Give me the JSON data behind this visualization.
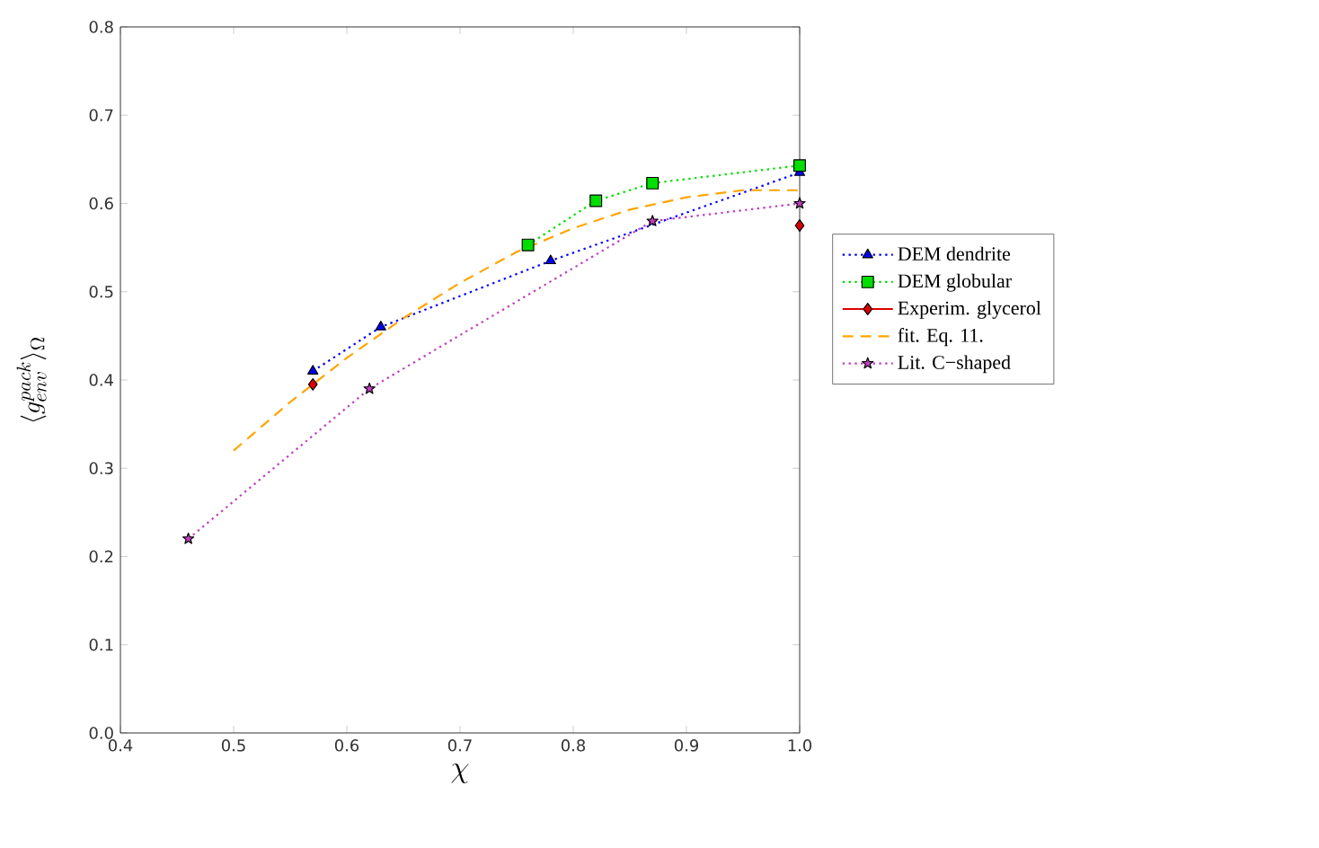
{
  "chart_data": {
    "type": "line",
    "xlabel": "\\chi",
    "ylabel": "\\langle g_{env}^{pack} \\rangle_{\\Omega}",
    "xlim": [
      0.4,
      1.0
    ],
    "ylim": [
      0.0,
      0.8
    ],
    "xticks": [
      0.4,
      0.5,
      0.6,
      0.7,
      0.8,
      0.9,
      {
        "value": 1.0,
        "label": "1.0"
      }
    ],
    "yticks": [
      {
        "value": 0.0,
        "label": "0.0"
      },
      0.1,
      0.2,
      0.3,
      0.4,
      0.5,
      0.6,
      0.7,
      0.8
    ],
    "legend": "right",
    "grid": false,
    "series": [
      {
        "name": "DEM dendrite",
        "color": "#0000ff",
        "marker": "triangle",
        "line_style": "dotted",
        "x": [
          0.57,
          0.63,
          0.78,
          1.0
        ],
        "values": [
          0.41,
          0.46,
          0.535,
          0.635
        ]
      },
      {
        "name": "DEM globular",
        "color": "#00dd00",
        "marker": "square",
        "line_style": "dotted",
        "x": [
          0.76,
          0.82,
          0.87,
          1.0
        ],
        "values": [
          0.553,
          0.603,
          0.623,
          0.643
        ]
      },
      {
        "name": "Experim. glycerol",
        "type": "scatter",
        "color": "#dd0000",
        "marker": "diamond",
        "x": [
          0.57,
          1.0
        ],
        "values": [
          0.395,
          0.575
        ]
      },
      {
        "name": "fit. Eq. 11.",
        "color": "#ffa500",
        "marker": "none",
        "line_style": "dashed",
        "x": [
          0.5,
          0.55,
          0.6,
          0.65,
          0.7,
          0.75,
          0.8,
          0.85,
          0.9,
          0.95,
          1.0
        ],
        "values": [
          0.32,
          0.375,
          0.425,
          0.47,
          0.51,
          0.545,
          0.572,
          0.593,
          0.607,
          0.615,
          0.615
        ]
      },
      {
        "name": "Lit. C−shaped",
        "color": "#bf40bf",
        "marker": "star",
        "line_style": "dotted",
        "x": [
          0.46,
          0.62,
          0.87,
          1.0
        ],
        "values": [
          0.22,
          0.39,
          0.58,
          0.6
        ]
      }
    ]
  }
}
